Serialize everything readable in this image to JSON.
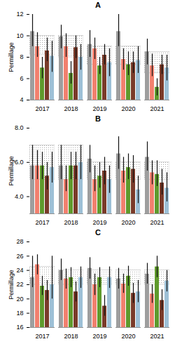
{
  "chart_data": [
    {
      "type": "bar",
      "title": "A",
      "y_label": "Permillage",
      "categories": [
        "2017",
        "2018",
        "2019",
        "2020",
        "2021"
      ],
      "ylim": [
        4,
        12
      ],
      "yticks": [
        4,
        6,
        8,
        10,
        12
      ],
      "reference_low": [
        8.2,
        8.0,
        7.3,
        7.3,
        6.5
      ],
      "reference_high": [
        10.0,
        10.0,
        9.0,
        9.0,
        8.5
      ],
      "series": [
        {
          "color": "#9e9e9e",
          "values": [
            10.4,
            9.9,
            9.2,
            10.4,
            8.5
          ],
          "error_low": [
            9.0,
            8.8,
            8.0,
            9.0,
            7.3
          ],
          "error_high": [
            12.0,
            11.0,
            10.5,
            12.0,
            9.7
          ]
        },
        {
          "color": "#f2806e",
          "values": [
            9.0,
            9.0,
            8.8,
            7.8,
            7.2
          ],
          "error_low": [
            8.0,
            8.0,
            7.8,
            6.8,
            6.2
          ],
          "error_high": [
            10.3,
            10.2,
            9.8,
            8.8,
            8.3
          ]
        },
        {
          "color": "#5f9a2c",
          "values": [
            7.0,
            6.5,
            7.2,
            7.3,
            5.2
          ],
          "error_low": [
            6.0,
            5.5,
            6.4,
            6.3,
            4.4
          ],
          "error_high": [
            8.0,
            7.6,
            8.0,
            8.5,
            6.0
          ]
        },
        {
          "color": "#7a3b2a",
          "values": [
            8.6,
            8.9,
            8.2,
            7.5,
            7.3
          ],
          "error_low": [
            7.6,
            7.9,
            7.3,
            6.5,
            6.4
          ],
          "error_high": [
            9.8,
            10.0,
            9.2,
            8.5,
            8.2
          ]
        },
        {
          "color": "#9dc0d6",
          "values": [
            8.1,
            8.0,
            7.5,
            7.7,
            7.0
          ],
          "error_low": [
            6.6,
            6.8,
            6.2,
            6.5,
            5.8
          ],
          "error_high": [
            9.5,
            9.2,
            8.8,
            9.0,
            8.2
          ]
        }
      ]
    },
    {
      "type": "bar",
      "title": "B",
      "y_label": "Permillage",
      "categories": [
        "2017",
        "2018",
        "2019",
        "2020",
        "2021"
      ],
      "ylim": [
        3,
        8
      ],
      "yticks": [
        4,
        6,
        8
      ],
      "reference_low": [
        5.0,
        5.0,
        5.0,
        5.0,
        5.0
      ],
      "reference_high": [
        7.0,
        7.0,
        6.0,
        6.0,
        6.0
      ],
      "series": [
        {
          "color": "#9e9e9e",
          "values": [
            5.8,
            5.8,
            6.2,
            6.5,
            6.3
          ],
          "error_low": [
            5.0,
            5.0,
            5.4,
            5.6,
            5.5
          ],
          "error_high": [
            7.0,
            7.0,
            7.0,
            7.5,
            7.2
          ]
        },
        {
          "color": "#f2806e",
          "values": [
            5.8,
            5.0,
            5.0,
            5.5,
            5.4
          ],
          "error_low": [
            5.0,
            4.3,
            4.3,
            4.8,
            4.7
          ],
          "error_high": [
            6.7,
            5.8,
            5.8,
            6.3,
            6.1
          ]
        },
        {
          "color": "#5f9a2c",
          "values": [
            5.8,
            5.8,
            5.2,
            5.7,
            5.3
          ],
          "error_low": [
            5.0,
            5.0,
            4.5,
            5.0,
            4.6
          ],
          "error_high": [
            6.6,
            6.6,
            6.0,
            6.5,
            6.1
          ]
        },
        {
          "color": "#7a3b2a",
          "values": [
            5.2,
            5.8,
            5.5,
            5.6,
            4.8
          ],
          "error_low": [
            4.4,
            5.0,
            4.7,
            4.8,
            4.1
          ],
          "error_high": [
            6.0,
            6.6,
            6.3,
            6.4,
            5.6
          ]
        },
        {
          "color": "#9dc0d6",
          "values": [
            5.7,
            6.0,
            5.0,
            4.4,
            4.5
          ],
          "error_low": [
            4.8,
            5.0,
            4.2,
            3.6,
            3.7
          ],
          "error_high": [
            6.6,
            7.0,
            5.8,
            5.2,
            5.4
          ]
        }
      ]
    },
    {
      "type": "bar",
      "title": "C",
      "y_label": "Permillage",
      "categories": [
        "2017",
        "2018",
        "2019",
        "2020",
        "2021"
      ],
      "ylim": [
        16,
        28
      ],
      "yticks": [
        16,
        18,
        20,
        22,
        24,
        26,
        28
      ],
      "reference_low": [
        22.0,
        22.0,
        22.0,
        22.0,
        22.0
      ],
      "reference_high": [
        24.5,
        24.0,
        24.0,
        24.0,
        24.0
      ],
      "series": [
        {
          "color": "#9e9e9e",
          "values": [
            23.0,
            24.0,
            24.3,
            22.8,
            23.5
          ],
          "error_low": [
            21.6,
            22.6,
            22.8,
            21.4,
            22.1
          ],
          "error_high": [
            26.0,
            25.6,
            25.8,
            24.3,
            25.0
          ]
        },
        {
          "color": "#f2806e",
          "values": [
            24.8,
            22.8,
            22.0,
            22.1,
            20.7
          ],
          "error_low": [
            23.4,
            21.4,
            20.5,
            20.8,
            19.4
          ],
          "error_high": [
            26.2,
            24.2,
            23.5,
            23.5,
            22.0
          ]
        },
        {
          "color": "#5f9a2c",
          "values": [
            21.8,
            23.0,
            23.0,
            23.2,
            24.5
          ],
          "error_low": [
            20.5,
            21.6,
            21.6,
            21.8,
            23.0
          ],
          "error_high": [
            23.2,
            24.4,
            24.4,
            24.6,
            26.0
          ]
        },
        {
          "color": "#7a3b2a",
          "values": [
            21.2,
            21.0,
            19.0,
            20.8,
            19.8
          ],
          "error_low": [
            19.8,
            19.6,
            17.6,
            19.4,
            18.4
          ],
          "error_high": [
            22.6,
            22.4,
            20.5,
            22.2,
            21.3
          ]
        },
        {
          "color": "#9dc0d6",
          "values": [
            22.0,
            23.0,
            23.0,
            21.0,
            22.5
          ],
          "error_low": [
            20.0,
            21.5,
            21.5,
            19.5,
            21.0
          ],
          "error_high": [
            26.0,
            24.5,
            24.5,
            22.6,
            24.0
          ]
        }
      ]
    }
  ]
}
